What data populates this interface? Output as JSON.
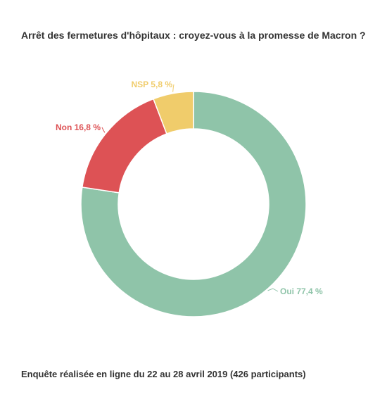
{
  "title": "Arrêt des fermetures d'hôpitaux : croyez-vous à la promesse de Macron ?",
  "footer": "Enquête réalisée en ligne du 22 au 28 avril 2019  (426 participants)",
  "chart_data": {
    "type": "pie",
    "variant": "donut",
    "title": "Arrêt des fermetures d'hôpitaux : croyez-vous à la promesse de Macron ?",
    "slices": [
      {
        "category": "Oui",
        "value": 77.4,
        "label": "Oui 77,4 %",
        "color": "#8fc4a9"
      },
      {
        "category": "Non",
        "value": 16.8,
        "label": "Non 16,8 %",
        "color": "#dd5255"
      },
      {
        "category": "NSP",
        "value": 5.8,
        "label": "NSP 5,8 %",
        "color": "#f0cc6b"
      }
    ],
    "legend": "none"
  }
}
